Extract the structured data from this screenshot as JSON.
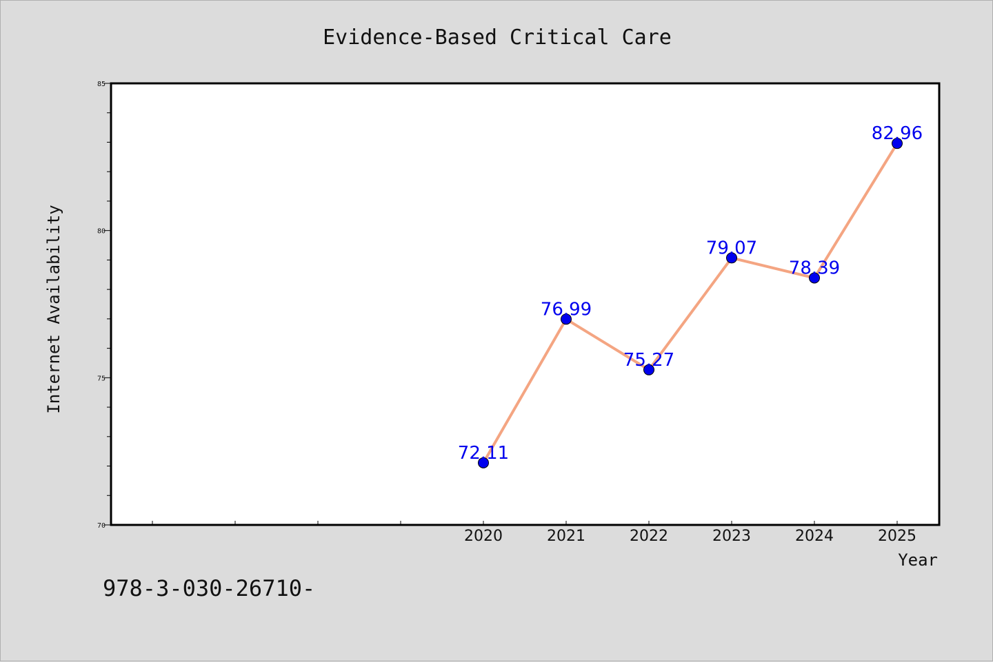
{
  "chart_data": {
    "type": "line",
    "title": "Evidence-Based Critical Care",
    "xlabel": "Year",
    "ylabel": "Internet Availability",
    "x": [
      "2020",
      "2021",
      "2022",
      "2023",
      "2024",
      "2025"
    ],
    "series": [
      {
        "values": [
          72.11,
          76.99,
          75.27,
          79.07,
          78.39,
          82.96
        ]
      }
    ],
    "data_labels": [
      "72.11",
      "76.99",
      "75.27",
      "79.07",
      "78.39",
      "82.96"
    ],
    "ylim": [
      70,
      85
    ],
    "yticks": [
      "70",
      "75",
      "80",
      "85"
    ],
    "grid": false,
    "line_color": "#f4a582",
    "marker_color": "#0000ee",
    "label_color": "#0000ee"
  },
  "footer": {
    "isbn": "978-3-030-26710-"
  }
}
